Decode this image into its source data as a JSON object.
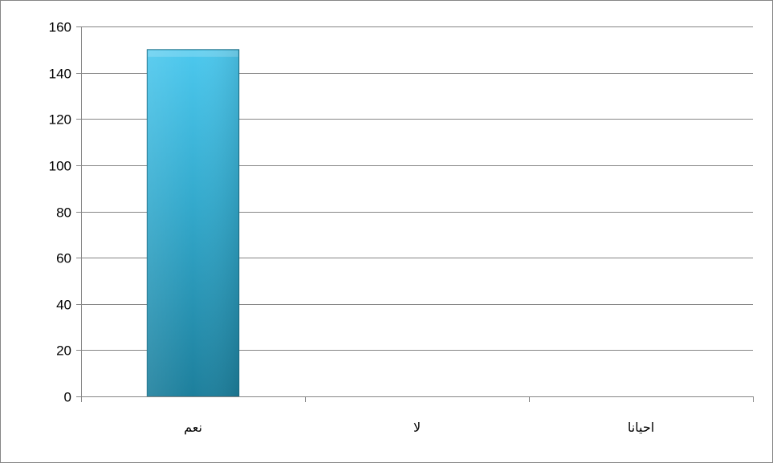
{
  "chart_data": {
    "type": "bar",
    "title": "",
    "xlabel": "",
    "ylabel": "",
    "categories": [
      "نعم",
      "لا",
      "احيانا"
    ],
    "values": [
      150,
      0,
      0
    ],
    "ylim": [
      0,
      160
    ],
    "yticks": [
      0,
      20,
      40,
      60,
      80,
      100,
      120,
      140,
      160
    ],
    "grid": "horizontal",
    "legend": "none",
    "colors": {
      "bar_top": "#4cc8ee",
      "bar_mid": "#33a9cc",
      "bar_bottom": "#1d7f9c",
      "bar_edge": "#1b6f87",
      "gridline": "#868686",
      "axis": "#868686"
    }
  }
}
